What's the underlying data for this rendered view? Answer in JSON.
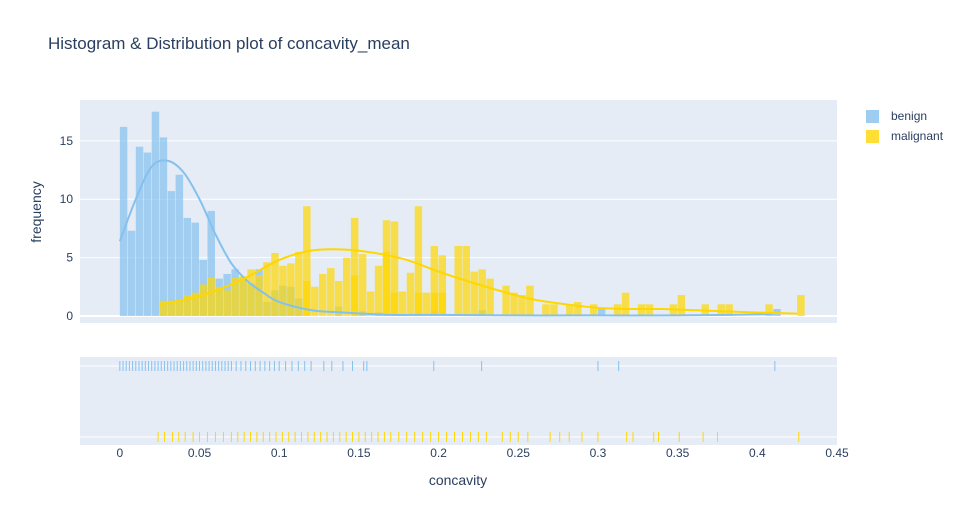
{
  "title": "Histogram & Distribution plot of concavity_mean",
  "legend": [
    {
      "name": "benign",
      "color": "#85c1ee"
    },
    {
      "name": "malignant",
      "color": "#ffd700"
    }
  ],
  "chart_data": {
    "type": "histogram",
    "title": "Histogram & Distribution plot of concavity_mean",
    "xlabel": "concavity",
    "ylabel": "frequency",
    "xlim": [
      -0.025,
      0.45
    ],
    "ylim": [
      -0.6,
      18.5
    ],
    "x_ticks": [
      0,
      0.05,
      0.1,
      0.15,
      0.2,
      0.25,
      0.3,
      0.35,
      0.4,
      0.45
    ],
    "x_tick_labels": [
      "0",
      "0.05",
      "0.1",
      "0.15",
      "0.2",
      "0.25",
      "0.3",
      "0.35",
      "0.4",
      "0.45"
    ],
    "y_ticks": [
      0,
      5,
      10,
      15
    ],
    "y_tick_labels": [
      "0",
      "5",
      "10",
      "15"
    ],
    "bin_width": 0.005,
    "legend_position": "top-right",
    "series": [
      {
        "name": "benign",
        "color": "#85c1ee",
        "bins_start": 0,
        "counts": [
          16.2,
          7.3,
          14.5,
          14.0,
          17.5,
          15.3,
          10.7,
          12.1,
          8.4,
          8.0,
          4.8,
          9.0,
          3.2,
          3.6,
          4.0,
          3.3,
          2.8,
          4.0,
          1.2,
          2.2,
          2.6,
          2.5,
          1.5,
          0,
          0,
          0,
          0,
          0.8,
          0,
          0,
          0.4,
          0,
          0.3
        ],
        "sparse_bins": [
          [
            0.195,
            0.5
          ],
          [
            0.225,
            0.5
          ],
          [
            0.3,
            0.6
          ],
          [
            0.41,
            0.6
          ]
        ],
        "kde": [
          [
            0,
            6.4
          ],
          [
            0.01,
            10
          ],
          [
            0.02,
            12.8
          ],
          [
            0.03,
            13.3
          ],
          [
            0.04,
            12.3
          ],
          [
            0.05,
            10
          ],
          [
            0.06,
            7
          ],
          [
            0.07,
            4.5
          ],
          [
            0.08,
            3
          ],
          [
            0.09,
            2
          ],
          [
            0.1,
            1.2
          ],
          [
            0.12,
            0.5
          ],
          [
            0.14,
            0.3
          ],
          [
            0.17,
            0.1
          ],
          [
            0.2,
            0.1
          ],
          [
            0.25,
            0.05
          ],
          [
            0.3,
            0.05
          ],
          [
            0.35,
            0.05
          ],
          [
            0.41,
            0.15
          ]
        ],
        "rug": [
          0,
          0.002,
          0.004,
          0.006,
          0.008,
          0.01,
          0.012,
          0.014,
          0.016,
          0.018,
          0.02,
          0.022,
          0.024,
          0.026,
          0.028,
          0.03,
          0.032,
          0.034,
          0.036,
          0.038,
          0.04,
          0.042,
          0.044,
          0.046,
          0.048,
          0.05,
          0.052,
          0.054,
          0.056,
          0.058,
          0.06,
          0.062,
          0.064,
          0.066,
          0.068,
          0.07,
          0.073,
          0.076,
          0.079,
          0.082,
          0.085,
          0.088,
          0.091,
          0.094,
          0.097,
          0.1,
          0.104,
          0.108,
          0.112,
          0.116,
          0.12,
          0.128,
          0.133,
          0.14,
          0.146,
          0.153,
          0.155,
          0.197,
          0.227,
          0.3,
          0.313,
          0.411
        ]
      },
      {
        "name": "malignant",
        "color": "#ffd700",
        "bins_start": 0.025,
        "counts": [
          1.3,
          1.3,
          1.2,
          1.8,
          2.0,
          2.7,
          3.3,
          2.5,
          2.2,
          3.3,
          3.4,
          4.0,
          3.5,
          4.6,
          5.4,
          4.3,
          4.5,
          5.5,
          3.0,
          2.5,
          3.6,
          4.1,
          3.0,
          5.0,
          3.5,
          5.3,
          2.1,
          4.3,
          5.5,
          2.0,
          2.1,
          3.7,
          2.0,
          2.0,
          2.0,
          2.0
        ],
        "sparse_bins": [
          [
            0.115,
            9.4
          ],
          [
            0.145,
            8.4
          ],
          [
            0.165,
            8.2
          ],
          [
            0.17,
            8.1
          ],
          [
            0.185,
            9.4
          ],
          [
            0.195,
            6.0
          ],
          [
            0.2,
            5.2
          ],
          [
            0.21,
            6.0
          ],
          [
            0.215,
            6.0
          ],
          [
            0.22,
            3.8
          ],
          [
            0.225,
            4.0
          ],
          [
            0.23,
            3.2
          ],
          [
            0.24,
            2.6
          ],
          [
            0.245,
            2.0
          ],
          [
            0.25,
            1.8
          ],
          [
            0.255,
            2.6
          ],
          [
            0.265,
            1.0
          ],
          [
            0.27,
            1.0
          ],
          [
            0.28,
            1.0
          ],
          [
            0.285,
            1.2
          ],
          [
            0.295,
            1.0
          ],
          [
            0.31,
            1.0
          ],
          [
            0.315,
            2.0
          ],
          [
            0.325,
            1.0
          ],
          [
            0.33,
            1.0
          ],
          [
            0.345,
            1.0
          ],
          [
            0.35,
            1.8
          ],
          [
            0.365,
            1.0
          ],
          [
            0.375,
            1.0
          ],
          [
            0.38,
            1.0
          ],
          [
            0.405,
            1.0
          ],
          [
            0.425,
            1.8
          ]
        ],
        "kde": [
          [
            0.025,
            1.0
          ],
          [
            0.05,
            1.7
          ],
          [
            0.075,
            3.0
          ],
          [
            0.1,
            4.8
          ],
          [
            0.12,
            5.6
          ],
          [
            0.14,
            5.7
          ],
          [
            0.16,
            5.4
          ],
          [
            0.18,
            4.8
          ],
          [
            0.2,
            3.8
          ],
          [
            0.22,
            2.9
          ],
          [
            0.24,
            2.1
          ],
          [
            0.26,
            1.4
          ],
          [
            0.28,
            1.0
          ],
          [
            0.3,
            0.7
          ],
          [
            0.32,
            0.6
          ],
          [
            0.34,
            0.6
          ],
          [
            0.36,
            0.5
          ],
          [
            0.38,
            0.4
          ],
          [
            0.4,
            0.3
          ],
          [
            0.425,
            0.2
          ]
        ],
        "rug": [
          0.024,
          0.028,
          0.033,
          0.037,
          0.041,
          0.046,
          0.05,
          0.055,
          0.06,
          0.065,
          0.07,
          0.074,
          0.078,
          0.082,
          0.086,
          0.09,
          0.094,
          0.098,
          0.102,
          0.106,
          0.11,
          0.114,
          0.118,
          0.122,
          0.126,
          0.13,
          0.134,
          0.138,
          0.142,
          0.146,
          0.15,
          0.154,
          0.158,
          0.162,
          0.166,
          0.17,
          0.175,
          0.18,
          0.185,
          0.19,
          0.195,
          0.2,
          0.205,
          0.21,
          0.215,
          0.22,
          0.225,
          0.23,
          0.24,
          0.245,
          0.25,
          0.256,
          0.27,
          0.276,
          0.282,
          0.29,
          0.3,
          0.318,
          0.322,
          0.335,
          0.338,
          0.351,
          0.366,
          0.375,
          0.426
        ]
      }
    ]
  }
}
